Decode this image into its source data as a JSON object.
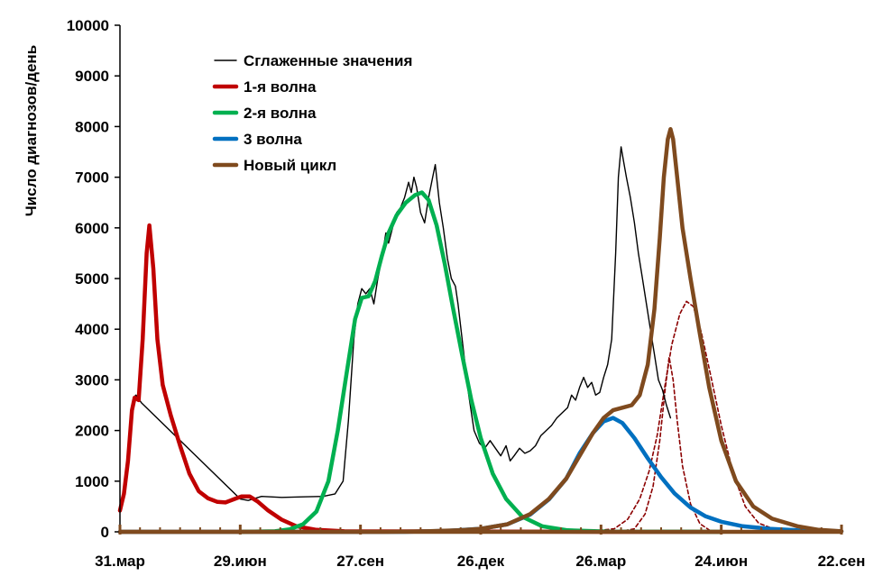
{
  "chart_data": {
    "type": "line",
    "title": "",
    "ylabel": "Число диагнозов/день",
    "xlabel": "",
    "ylim": [
      0,
      10000
    ],
    "y_ticks": [
      0,
      1000,
      2000,
      3000,
      4000,
      5000,
      6000,
      7000,
      8000,
      9000,
      10000
    ],
    "x_range": [
      "2020-03-31",
      "2021-09-22"
    ],
    "x_ticks": [
      {
        "date": "2020-03-31",
        "label": "31.мар"
      },
      {
        "date": "2020-06-29",
        "label": "29.июн"
      },
      {
        "date": "2020-09-27",
        "label": "27.сен"
      },
      {
        "date": "2020-12-26",
        "label": "26.дек"
      },
      {
        "date": "2021-03-26",
        "label": "26.мар"
      },
      {
        "date": "2021-06-24",
        "label": "24.июн"
      },
      {
        "date": "2021-09-22",
        "label": "22.сен"
      }
    ],
    "grid": false,
    "legend_position": "top-left",
    "series": [
      {
        "name": "Сглаженные значения",
        "color": "#000000",
        "style": "thin",
        "points": [
          [
            "2020-04-10",
            2650
          ],
          [
            "2020-04-12",
            2700
          ],
          [
            "2020-04-16",
            2550
          ],
          [
            "2020-06-29",
            650
          ],
          [
            "2020-07-05",
            620
          ],
          [
            "2020-07-15",
            700
          ],
          [
            "2020-07-30",
            680
          ],
          [
            "2020-08-15",
            690
          ],
          [
            "2020-08-30",
            700
          ],
          [
            "2020-09-08",
            750
          ],
          [
            "2020-09-14",
            1000
          ],
          [
            "2020-09-18",
            2200
          ],
          [
            "2020-09-22",
            3800
          ],
          [
            "2020-09-25",
            4500
          ],
          [
            "2020-09-28",
            4800
          ],
          [
            "2020-10-01",
            4700
          ],
          [
            "2020-10-04",
            4800
          ],
          [
            "2020-10-07",
            4500
          ],
          [
            "2020-10-10",
            5000
          ],
          [
            "2020-10-13",
            5400
          ],
          [
            "2020-10-16",
            5900
          ],
          [
            "2020-10-18",
            5700
          ],
          [
            "2020-10-21",
            6000
          ],
          [
            "2020-10-24",
            6300
          ],
          [
            "2020-10-27",
            6400
          ],
          [
            "2020-10-30",
            6600
          ],
          [
            "2020-11-02",
            6900
          ],
          [
            "2020-11-04",
            6700
          ],
          [
            "2020-11-06",
            7000
          ],
          [
            "2020-11-08",
            6800
          ],
          [
            "2020-11-11",
            6300
          ],
          [
            "2020-11-14",
            6100
          ],
          [
            "2020-11-17",
            6600
          ],
          [
            "2020-11-20",
            7000
          ],
          [
            "2020-11-22",
            7250
          ],
          [
            "2020-11-25",
            6500
          ],
          [
            "2020-11-28",
            6000
          ],
          [
            "2020-12-01",
            5400
          ],
          [
            "2020-12-04",
            5000
          ],
          [
            "2020-12-07",
            4850
          ],
          [
            "2020-12-09",
            4500
          ],
          [
            "2020-12-13",
            3600
          ],
          [
            "2020-12-17",
            2700
          ],
          [
            "2020-12-21",
            2000
          ],
          [
            "2020-12-25",
            1750
          ],
          [
            "2020-12-29",
            1650
          ],
          [
            "2021-01-02",
            1800
          ],
          [
            "2021-01-06",
            1650
          ],
          [
            "2021-01-10",
            1500
          ],
          [
            "2021-01-14",
            1700
          ],
          [
            "2021-01-17",
            1400
          ],
          [
            "2021-01-20",
            1500
          ],
          [
            "2021-01-24",
            1650
          ],
          [
            "2021-01-28",
            1550
          ],
          [
            "2021-02-01",
            1600
          ],
          [
            "2021-02-05",
            1700
          ],
          [
            "2021-02-09",
            1900
          ],
          [
            "2021-02-13",
            2000
          ],
          [
            "2021-02-17",
            2100
          ],
          [
            "2021-02-21",
            2250
          ],
          [
            "2021-02-25",
            2350
          ],
          [
            "2021-03-01",
            2450
          ],
          [
            "2021-03-04",
            2700
          ],
          [
            "2021-03-07",
            2600
          ],
          [
            "2021-03-10",
            2850
          ],
          [
            "2021-03-13",
            3050
          ],
          [
            "2021-03-16",
            2850
          ],
          [
            "2021-03-19",
            2950
          ],
          [
            "2021-03-22",
            2700
          ],
          [
            "2021-03-25",
            2750
          ],
          [
            "2021-03-28",
            3050
          ],
          [
            "2021-03-31",
            3300
          ],
          [
            "2021-04-03",
            3800
          ],
          [
            "2021-04-06",
            5500
          ],
          [
            "2021-04-08",
            7000
          ],
          [
            "2021-04-10",
            7600
          ],
          [
            "2021-04-12",
            7300
          ],
          [
            "2021-04-14",
            7000
          ],
          [
            "2021-04-17",
            6600
          ],
          [
            "2021-04-20",
            6100
          ],
          [
            "2021-04-23",
            5500
          ],
          [
            "2021-04-26",
            5000
          ],
          [
            "2021-04-29",
            4500
          ],
          [
            "2021-05-02",
            4000
          ],
          [
            "2021-05-05",
            3500
          ],
          [
            "2021-05-08",
            3000
          ],
          [
            "2021-05-11",
            2800
          ],
          [
            "2021-05-14",
            2500
          ],
          [
            "2021-05-17",
            2250
          ]
        ]
      },
      {
        "name": "1-я волна",
        "color": "#c00000",
        "style": "thick",
        "points": [
          [
            "2020-03-31",
            420
          ],
          [
            "2020-04-03",
            750
          ],
          [
            "2020-04-06",
            1400
          ],
          [
            "2020-04-09",
            2400
          ],
          [
            "2020-04-11",
            2650
          ],
          [
            "2020-04-14",
            2600
          ],
          [
            "2020-04-17",
            3800
          ],
          [
            "2020-04-20",
            5500
          ],
          [
            "2020-04-22",
            6050
          ],
          [
            "2020-04-25",
            5200
          ],
          [
            "2020-04-28",
            3800
          ],
          [
            "2020-05-02",
            2900
          ],
          [
            "2020-05-08",
            2300
          ],
          [
            "2020-05-15",
            1700
          ],
          [
            "2020-05-22",
            1150
          ],
          [
            "2020-05-29",
            800
          ],
          [
            "2020-06-05",
            660
          ],
          [
            "2020-06-12",
            590
          ],
          [
            "2020-06-18",
            580
          ],
          [
            "2020-06-24",
            640
          ],
          [
            "2020-06-30",
            700
          ],
          [
            "2020-07-06",
            700
          ],
          [
            "2020-07-12",
            600
          ],
          [
            "2020-07-20",
            420
          ],
          [
            "2020-07-30",
            240
          ],
          [
            "2020-08-10",
            110
          ],
          [
            "2020-08-25",
            40
          ],
          [
            "2020-09-15",
            10
          ],
          [
            "2021-03-27",
            0
          ],
          [
            "2021-06-24",
            0
          ]
        ]
      },
      {
        "name": "2-я волна",
        "color": "#00b050",
        "style": "thick",
        "points": [
          [
            "2020-06-29",
            0
          ],
          [
            "2020-07-25",
            10
          ],
          [
            "2020-08-05",
            50
          ],
          [
            "2020-08-15",
            150
          ],
          [
            "2020-08-25",
            400
          ],
          [
            "2020-09-03",
            1000
          ],
          [
            "2020-09-10",
            2000
          ],
          [
            "2020-09-17",
            3200
          ],
          [
            "2020-09-23",
            4200
          ],
          [
            "2020-09-28",
            4620
          ],
          [
            "2020-10-03",
            4650
          ],
          [
            "2020-10-08",
            4950
          ],
          [
            "2020-10-13",
            5450
          ],
          [
            "2020-10-18",
            5900
          ],
          [
            "2020-10-24",
            6250
          ],
          [
            "2020-10-31",
            6500
          ],
          [
            "2020-11-07",
            6650
          ],
          [
            "2020-11-12",
            6700
          ],
          [
            "2020-11-17",
            6550
          ],
          [
            "2020-11-23",
            6050
          ],
          [
            "2020-11-29",
            5300
          ],
          [
            "2020-12-05",
            4450
          ],
          [
            "2020-12-12",
            3500
          ],
          [
            "2020-12-19",
            2600
          ],
          [
            "2020-12-26",
            1850
          ],
          [
            "2021-01-04",
            1150
          ],
          [
            "2021-01-14",
            650
          ],
          [
            "2021-01-26",
            300
          ],
          [
            "2021-02-10",
            110
          ],
          [
            "2021-03-01",
            30
          ],
          [
            "2021-04-01",
            5
          ],
          [
            "2021-06-24",
            0
          ]
        ]
      },
      {
        "name": "3 волна",
        "color": "#0070c0",
        "style": "thick",
        "points": [
          [
            "2020-03-31",
            0
          ],
          [
            "2020-10-30",
            0
          ],
          [
            "2020-12-01",
            20
          ],
          [
            "2020-12-26",
            60
          ],
          [
            "2021-01-15",
            150
          ],
          [
            "2021-02-01",
            340
          ],
          [
            "2021-02-15",
            640
          ],
          [
            "2021-02-28",
            1050
          ],
          [
            "2021-03-10",
            1550
          ],
          [
            "2021-03-20",
            1950
          ],
          [
            "2021-03-28",
            2180
          ],
          [
            "2021-04-04",
            2250
          ],
          [
            "2021-04-11",
            2150
          ],
          [
            "2021-04-20",
            1850
          ],
          [
            "2021-04-30",
            1450
          ],
          [
            "2021-05-10",
            1080
          ],
          [
            "2021-05-20",
            760
          ],
          [
            "2021-06-01",
            480
          ],
          [
            "2021-06-12",
            310
          ],
          [
            "2021-06-24",
            200
          ],
          [
            "2021-07-10",
            110
          ],
          [
            "2021-07-30",
            60
          ],
          [
            "2021-08-20",
            30
          ],
          [
            "2021-09-22",
            10
          ]
        ]
      },
      {
        "name": "Новый цикл",
        "color": "#7f4a1e",
        "style": "thick",
        "points": [
          [
            "2020-03-31",
            0
          ],
          [
            "2020-10-15",
            0
          ],
          [
            "2020-11-15",
            10
          ],
          [
            "2020-12-10",
            30
          ],
          [
            "2020-12-26",
            60
          ],
          [
            "2021-01-15",
            150
          ],
          [
            "2021-02-01",
            350
          ],
          [
            "2021-02-15",
            650
          ],
          [
            "2021-02-28",
            1050
          ],
          [
            "2021-03-10",
            1500
          ],
          [
            "2021-03-20",
            1950
          ],
          [
            "2021-03-28",
            2250
          ],
          [
            "2021-04-04",
            2400
          ],
          [
            "2021-04-11",
            2450
          ],
          [
            "2021-04-18",
            2500
          ],
          [
            "2021-04-24",
            2700
          ],
          [
            "2021-04-30",
            3300
          ],
          [
            "2021-05-05",
            4400
          ],
          [
            "2021-05-09",
            5800
          ],
          [
            "2021-05-12",
            7000
          ],
          [
            "2021-05-15",
            7750
          ],
          [
            "2021-05-17",
            7950
          ],
          [
            "2021-05-19",
            7750
          ],
          [
            "2021-05-22",
            7000
          ],
          [
            "2021-05-26",
            6000
          ],
          [
            "2021-06-01",
            5000
          ],
          [
            "2021-06-08",
            3900
          ],
          [
            "2021-06-15",
            2850
          ],
          [
            "2021-06-24",
            1800
          ],
          [
            "2021-07-05",
            1000
          ],
          [
            "2021-07-18",
            500
          ],
          [
            "2021-08-01",
            260
          ],
          [
            "2021-08-20",
            110
          ],
          [
            "2021-09-05",
            40
          ],
          [
            "2021-09-22",
            10
          ]
        ]
      },
      {
        "name": "",
        "color": "#8b0000",
        "style": "dashed",
        "points": [
          [
            "2021-04-08",
            0
          ],
          [
            "2021-04-20",
            60
          ],
          [
            "2021-04-28",
            350
          ],
          [
            "2021-05-04",
            900
          ],
          [
            "2021-05-09",
            1800
          ],
          [
            "2021-05-13",
            2800
          ],
          [
            "2021-05-16",
            3450
          ],
          [
            "2021-05-19",
            3000
          ],
          [
            "2021-05-22",
            2200
          ],
          [
            "2021-05-26",
            1300
          ],
          [
            "2021-06-01",
            550
          ],
          [
            "2021-06-08",
            160
          ],
          [
            "2021-06-16",
            20
          ],
          [
            "2021-06-24",
            0
          ]
        ]
      },
      {
        "name": "",
        "color": "#8b0000",
        "style": "dashed",
        "points": [
          [
            "2021-03-15",
            0
          ],
          [
            "2021-04-05",
            60
          ],
          [
            "2021-04-15",
            250
          ],
          [
            "2021-04-24",
            650
          ],
          [
            "2021-05-01",
            1200
          ],
          [
            "2021-05-07",
            1900
          ],
          [
            "2021-05-13",
            2900
          ],
          [
            "2021-05-18",
            3700
          ],
          [
            "2021-05-24",
            4300
          ],
          [
            "2021-05-29",
            4550
          ],
          [
            "2021-06-03",
            4450
          ],
          [
            "2021-06-09",
            3950
          ],
          [
            "2021-06-16",
            3100
          ],
          [
            "2021-06-24",
            2100
          ],
          [
            "2021-07-03",
            1150
          ],
          [
            "2021-07-12",
            500
          ],
          [
            "2021-07-22",
            170
          ],
          [
            "2021-08-05",
            30
          ],
          [
            "2021-08-20",
            0
          ]
        ]
      }
    ]
  },
  "legend": {
    "items": [
      {
        "label": "Сглаженные значения",
        "color": "#000000",
        "style": "thin"
      },
      {
        "label": "1-я волна",
        "color": "#c00000",
        "style": "thick"
      },
      {
        "label": "2-я волна",
        "color": "#00b050",
        "style": "thick"
      },
      {
        "label": "3 волна",
        "color": "#0070c0",
        "style": "thick"
      },
      {
        "label": "Новый цикл",
        "color": "#7f4a1e",
        "style": "thick"
      }
    ]
  }
}
